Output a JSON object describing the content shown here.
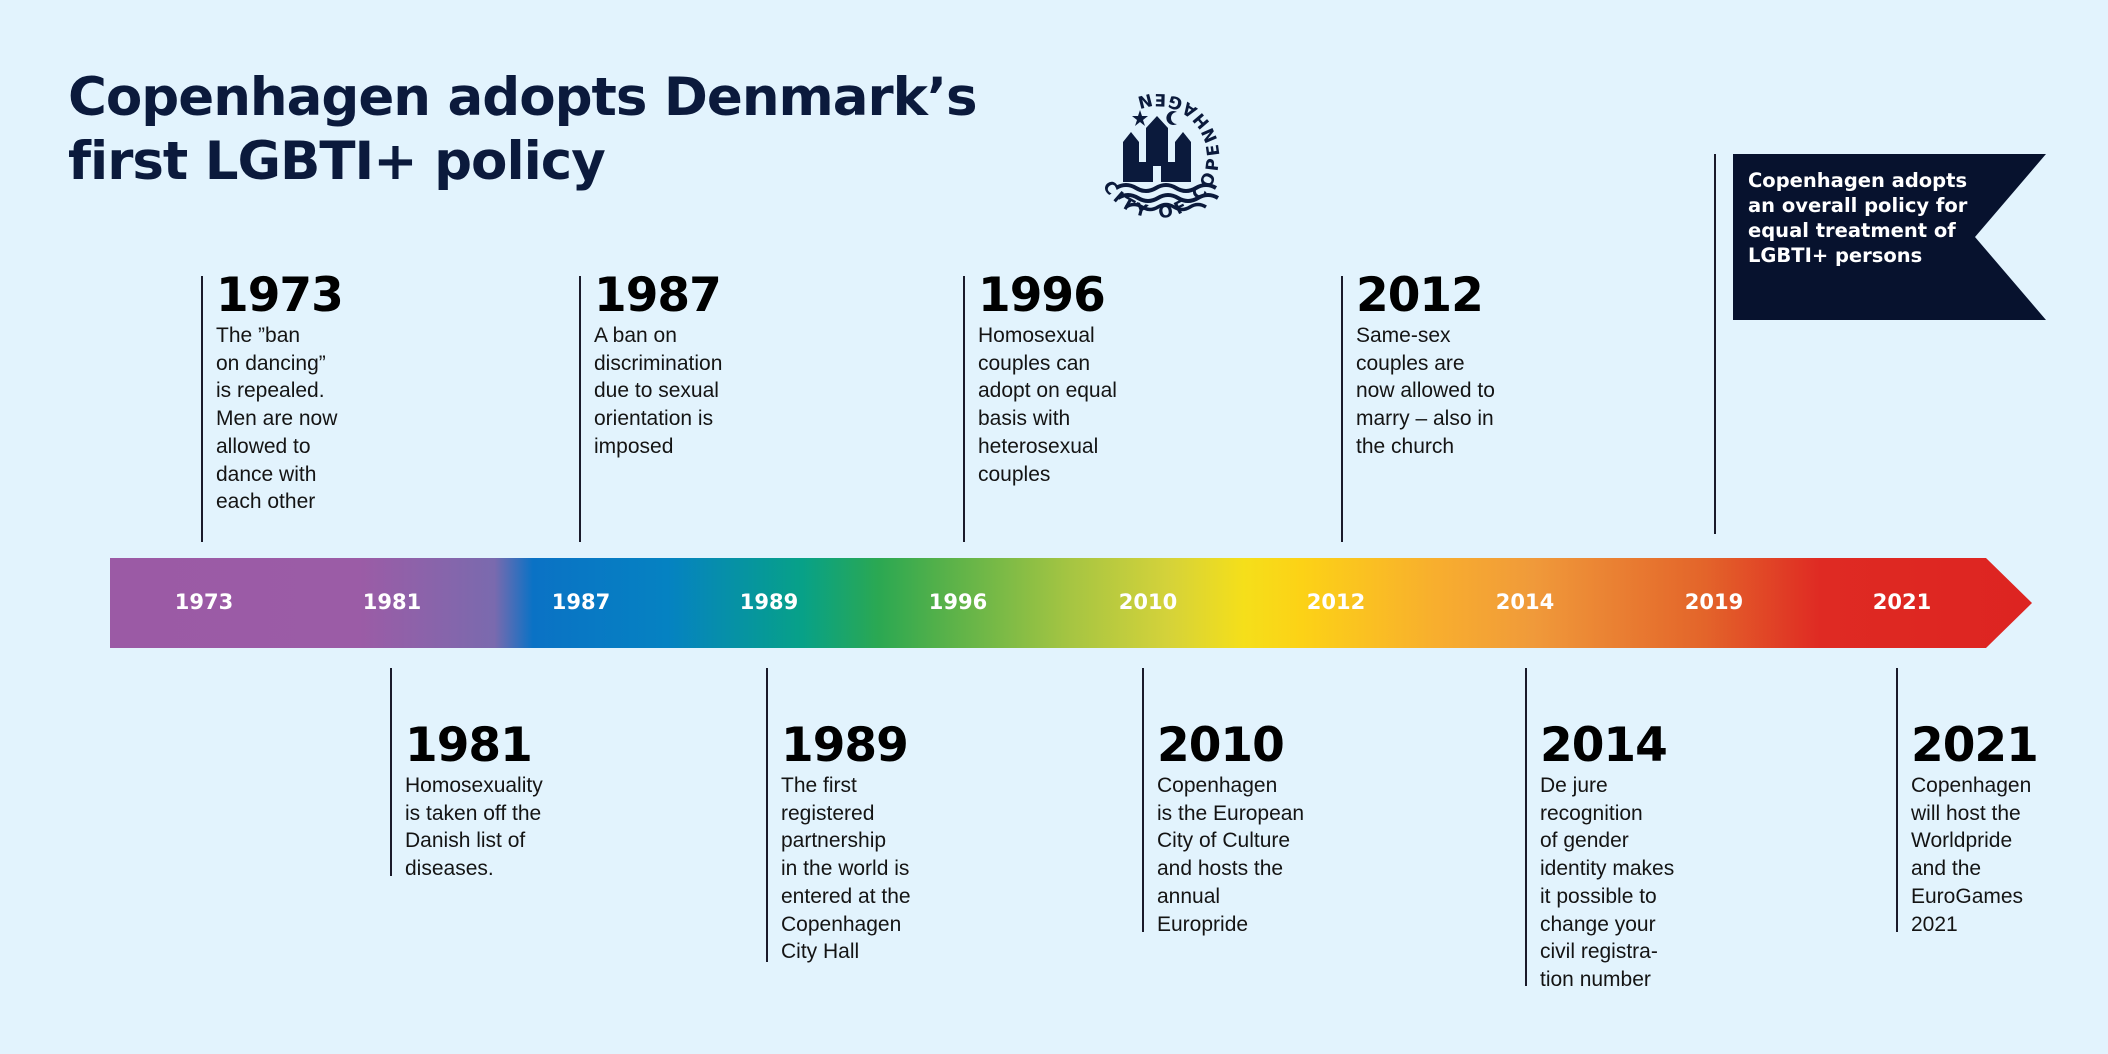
{
  "title": {
    "lines": [
      "Copenhagen adopts Denmark’s",
      "first LGBTI+ policy"
    ]
  },
  "logo": {
    "text": "CITY OF COPENHAGEN",
    "icon": "copenhagen-castle-emblem-icon"
  },
  "timeline_bar": {
    "labels": [
      "1973",
      "1981",
      "1987",
      "1989",
      "1996",
      "2010",
      "2012",
      "2014",
      "2019",
      "2021"
    ],
    "colors": {
      "start": "#9b5aa5",
      "blue": "#0a72c5",
      "green": "#2ba852",
      "yellow": "#f5df1a",
      "orange": "#f09a3a",
      "end": "#dd2421"
    }
  },
  "events": [
    {
      "year": "1973",
      "lines": [
        "The ”ban",
        "on dancing”",
        "is repealed.",
        "Men are now",
        "allowed to",
        "dance with",
        "each other"
      ]
    },
    {
      "year": "1981",
      "lines": [
        "Homosexuality",
        "is taken off the",
        "Danish list of",
        "diseases."
      ]
    },
    {
      "year": "1987",
      "lines": [
        "A ban on",
        "discrimination",
        "due to sexual",
        "orientation is",
        "imposed"
      ]
    },
    {
      "year": "1989",
      "lines": [
        "The first",
        "registered",
        "partnership",
        "in the world is",
        "entered at the",
        "Copenhagen",
        "City Hall"
      ]
    },
    {
      "year": "1996",
      "lines": [
        "Homosexual",
        "couples can",
        "adopt on equal",
        "basis with",
        "heterosexual",
        "couples"
      ]
    },
    {
      "year": "2010",
      "lines": [
        "Copenhagen",
        "is the European",
        "City of Culture",
        "and hosts the",
        "annual",
        "Europride"
      ]
    },
    {
      "year": "2012",
      "lines": [
        "Same-sex",
        "couples are",
        "now allowed to",
        "marry – also in",
        "the church"
      ]
    },
    {
      "year": "2014",
      "lines": [
        "De jure",
        "recognition",
        "of gender",
        "identity makes",
        "it possible to",
        "change your",
        "civil registra-",
        "tion number"
      ]
    },
    {
      "year": "2021",
      "lines": [
        "Copenhagen",
        "will host the",
        "Worldpride",
        "and the",
        "EuroGames",
        "2021"
      ]
    }
  ],
  "flag": {
    "lines": [
      "Copenhagen adopts",
      "an overall policy for",
      "equal treatment of",
      "LGBTI+ persons"
    ],
    "color": "#07122e"
  }
}
